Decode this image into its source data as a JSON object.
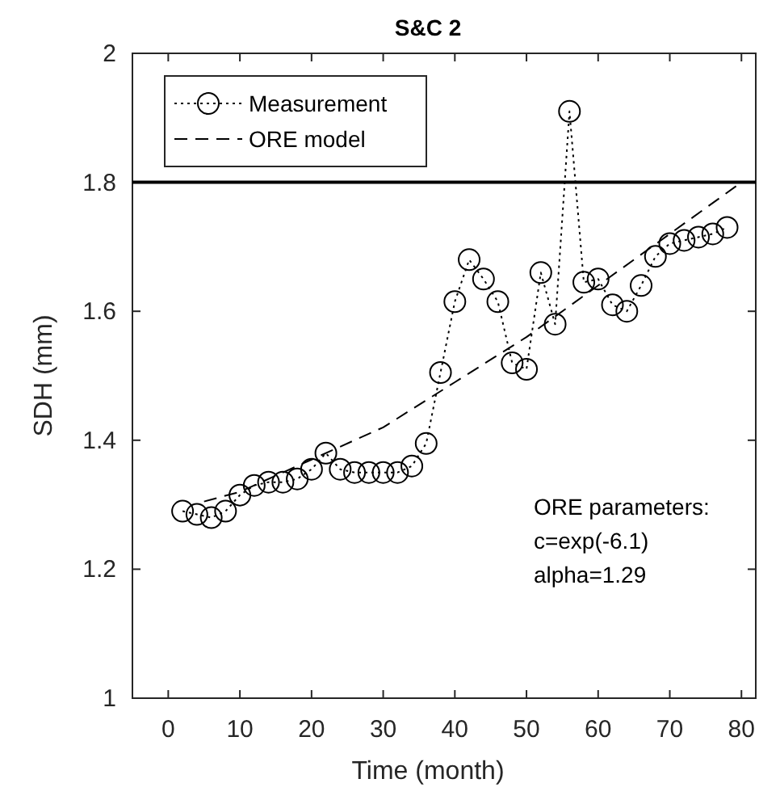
{
  "chart_data": {
    "type": "line",
    "title": "S&C 2",
    "xlabel": "Time (month)",
    "ylabel": "SDH (mm)",
    "xlim": [
      -5,
      82
    ],
    "xticks": [
      0,
      10,
      20,
      30,
      40,
      50,
      60,
      70,
      80
    ],
    "ylim": [
      1,
      2
    ],
    "yticks": [
      1,
      1.2,
      1.4,
      1.6,
      1.8,
      2
    ],
    "grid": false,
    "legend": "top left",
    "series": [
      {
        "name": "Measurement",
        "color": "#000000",
        "marker": "circle",
        "line_style": "dotted",
        "x": [
          2,
          4,
          6,
          8,
          10,
          12,
          14,
          16,
          18,
          20,
          22,
          24,
          26,
          28,
          30,
          32,
          34,
          36,
          38,
          40,
          42,
          44,
          46,
          48,
          50,
          52,
          54,
          56,
          58,
          60,
          62,
          64,
          66,
          68,
          70,
          72,
          74,
          76,
          78
        ],
        "values": [
          1.29,
          1.285,
          1.28,
          1.29,
          1.315,
          1.33,
          1.335,
          1.335,
          1.34,
          1.355,
          1.38,
          1.355,
          1.35,
          1.35,
          1.35,
          1.35,
          1.36,
          1.395,
          1.505,
          1.615,
          1.68,
          1.65,
          1.615,
          1.52,
          1.51,
          1.66,
          1.58,
          1.91,
          1.645,
          1.65,
          1.61,
          1.6,
          1.64,
          1.685,
          1.705,
          1.71,
          1.715,
          1.72,
          1.73
        ]
      },
      {
        "name": "ORE model",
        "color": "#000000",
        "marker": "none",
        "line_style": "dashed",
        "x": [
          5,
          10,
          20,
          30,
          40,
          50,
          60,
          70,
          80
        ],
        "values": [
          1.305,
          1.32,
          1.37,
          1.42,
          1.49,
          1.56,
          1.64,
          1.72,
          1.8
        ]
      }
    ],
    "ref_lines": [
      {
        "axis": "y",
        "value": 1.8,
        "color": "#000000",
        "line_style": "solid"
      }
    ],
    "annotations": [
      "ORE parameters:\nc=exp(-6.1)\nalpha=1.29"
    ]
  }
}
